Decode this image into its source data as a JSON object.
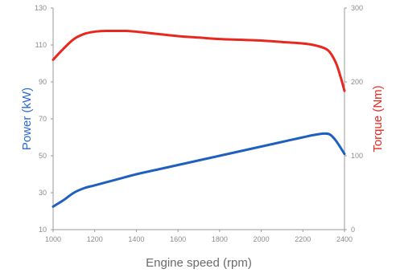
{
  "chart_data": {
    "type": "line",
    "xlabel": "Engine speed (rpm)",
    "ylabel": "Power (kW)",
    "y2label": "Torque (Nm)",
    "xlim": [
      1000,
      2400
    ],
    "ylim": [
      10,
      130
    ],
    "y2lim": [
      0,
      300
    ],
    "xticks": [
      "1000",
      "1200",
      "1400",
      "1600",
      "1800",
      "2000",
      "2200",
      "2400"
    ],
    "yticks": [
      "10",
      "30",
      "50",
      "70",
      "90",
      "110",
      "130"
    ],
    "y2ticks": [
      "0",
      "100",
      "200",
      "300"
    ],
    "grid": false,
    "colors": {
      "power": "#1f5fbf",
      "torque": "#e8281e",
      "power_label": "#2a6ad1",
      "torque_label": "#e8281e"
    },
    "series": [
      {
        "axis": "left",
        "x": [
          1000,
          1050,
          1100,
          1150,
          1200,
          1300,
          1400,
          1500,
          1600,
          1700,
          1800,
          1900,
          2000,
          2100,
          2200,
          2250,
          2300,
          2330,
          2360,
          2400
        ],
        "values": [
          22.5,
          26,
          30,
          32.5,
          34,
          37,
          40,
          42.5,
          45,
          47.5,
          50,
          52.5,
          55,
          57.5,
          60,
          61.2,
          62,
          61.5,
          58,
          51
        ]
      },
      {
        "axis": "right",
        "x": [
          1000,
          1050,
          1100,
          1150,
          1200,
          1250,
          1300,
          1350,
          1400,
          1500,
          1600,
          1700,
          1800,
          1900,
          2000,
          2100,
          2200,
          2250,
          2300,
          2330,
          2360,
          2380,
          2400
        ],
        "values": [
          230,
          245,
          258,
          265,
          268,
          269,
          269,
          269,
          268,
          265,
          262,
          260,
          258,
          257,
          256,
          254,
          252,
          250,
          246,
          240,
          225,
          208,
          188
        ]
      }
    ]
  }
}
